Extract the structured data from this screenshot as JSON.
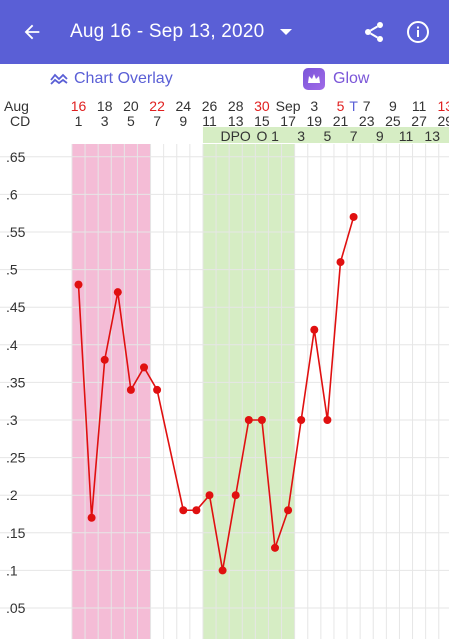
{
  "header": {
    "back_icon": "arrow-left-icon",
    "title": "Aug 16 - Sep 13, 2020",
    "share_icon": "share-icon",
    "info_icon": "info-icon",
    "color": "#5a5fd6"
  },
  "toolbar": {
    "chart_overlay_label": "Chart Overlay",
    "glow_label": "Glow"
  },
  "row_labels": {
    "month": "Aug",
    "cd": "CD",
    "dpo": "DPO",
    "ovulation": "O"
  },
  "date_columns": [
    {
      "day": "16",
      "cd": "1",
      "red": true
    },
    {
      "day": "18",
      "cd": "3",
      "red": false
    },
    {
      "day": "20",
      "cd": "5",
      "red": false
    },
    {
      "day": "22",
      "cd": "7",
      "red": true
    },
    {
      "day": "24",
      "cd": "9",
      "red": false
    },
    {
      "day": "26",
      "cd": "11",
      "red": false
    },
    {
      "day": "28",
      "cd": "13",
      "red": false
    },
    {
      "day": "30",
      "cd": "15",
      "red": true
    },
    {
      "day": "Sep",
      "cd": "17",
      "red": false
    },
    {
      "day": "3",
      "cd": "19",
      "red": false
    },
    {
      "day": "5",
      "cd": "21",
      "red": true
    },
    {
      "day": "7",
      "cd": "23",
      "red": false
    },
    {
      "day": "9",
      "cd": "25",
      "red": false
    },
    {
      "day": "11",
      "cd": "27",
      "red": false
    },
    {
      "day": "13",
      "cd": "29",
      "red": true
    }
  ],
  "test_marker": "T",
  "dpo_values": [
    "1",
    "3",
    "5",
    "7",
    "9",
    "11",
    "13"
  ],
  "colors": {
    "period": "#f4bcd6",
    "fertile": "#d6edc4",
    "line": "#e01010",
    "accent_red": "#e02020",
    "accent_blue": "#5a5fd6"
  },
  "chart_data": {
    "type": "line",
    "x_label": "CD",
    "y_ticks": [
      ".65",
      ".6",
      ".55",
      ".5",
      ".45",
      ".4",
      ".35",
      ".3",
      ".25",
      ".2",
      ".15",
      ".1",
      ".05"
    ],
    "ylim": [
      0.0,
      0.65
    ],
    "series": [
      {
        "x": [
          1,
          2,
          3,
          4,
          5,
          6,
          7,
          9,
          10,
          11,
          12,
          13,
          14,
          15,
          16,
          17,
          18,
          19,
          20,
          21
        ],
        "values": [
          0.48,
          0.17,
          0.38,
          0.47,
          0.34,
          0.37,
          0.34,
          0.18,
          0.18,
          0.2,
          0.1,
          0.2,
          0.3,
          0.3,
          0.13,
          0.18,
          0.3,
          0.42,
          0.3,
          0.51
        ]
      }
    ],
    "extra_point": {
      "x": 22,
      "value": 0.57
    },
    "period_range": [
      1,
      6
    ],
    "fertile_range": [
      11,
      17
    ],
    "grid": true
  }
}
